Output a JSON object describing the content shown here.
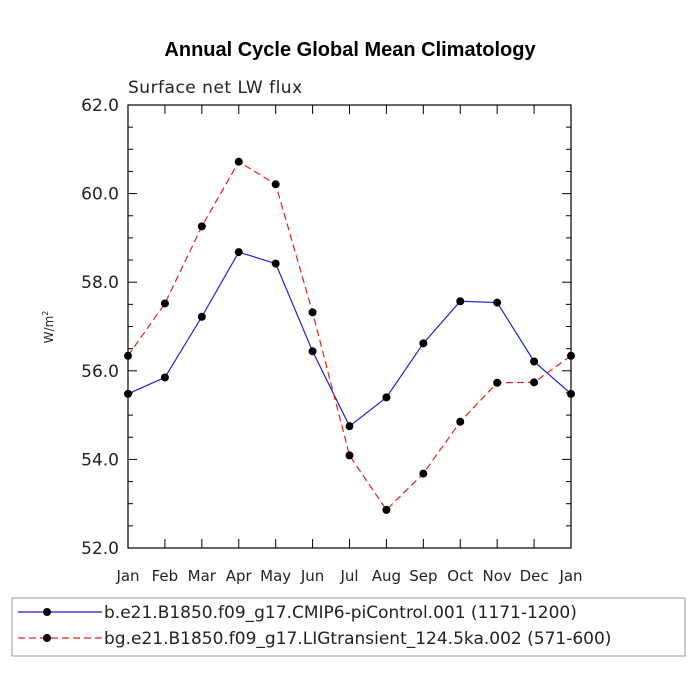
{
  "chart_data": {
    "type": "line",
    "title": "Annual Cycle Global Mean Climatology",
    "subtitle": "Surface net LW flux",
    "ylabel": "W/m",
    "ylabel_sup": "2",
    "xlabel": "",
    "categories": [
      "Jan",
      "Feb",
      "Mar",
      "Apr",
      "May",
      "Jun",
      "Jul",
      "Aug",
      "Sep",
      "Oct",
      "Nov",
      "Dec",
      "Jan"
    ],
    "ylim": [
      52.0,
      62.0
    ],
    "yticks": [
      "52.0",
      "54.0",
      "56.0",
      "58.0",
      "60.0",
      "62.0"
    ],
    "grid": false,
    "legend_position": "bottom",
    "series": [
      {
        "name": "b.e21.B1850.f09_g17.CMIP6-piControl.001 (1171-1200)",
        "color": "#1f1fd6",
        "dash": "solid",
        "marker": "dot",
        "values": [
          55.48,
          55.85,
          57.22,
          58.68,
          58.42,
          56.44,
          54.75,
          55.4,
          56.62,
          57.57,
          57.54,
          56.21,
          55.48
        ]
      },
      {
        "name": "bg.e21.B1850.f09_g17.LIGtransient_124.5ka.002 (571-600)",
        "color": "#e02020",
        "dash": "dashed",
        "marker": "dot",
        "values": [
          56.34,
          57.52,
          59.26,
          60.72,
          60.21,
          57.32,
          54.09,
          52.86,
          53.68,
          54.85,
          55.73,
          55.74,
          56.34
        ]
      }
    ]
  }
}
